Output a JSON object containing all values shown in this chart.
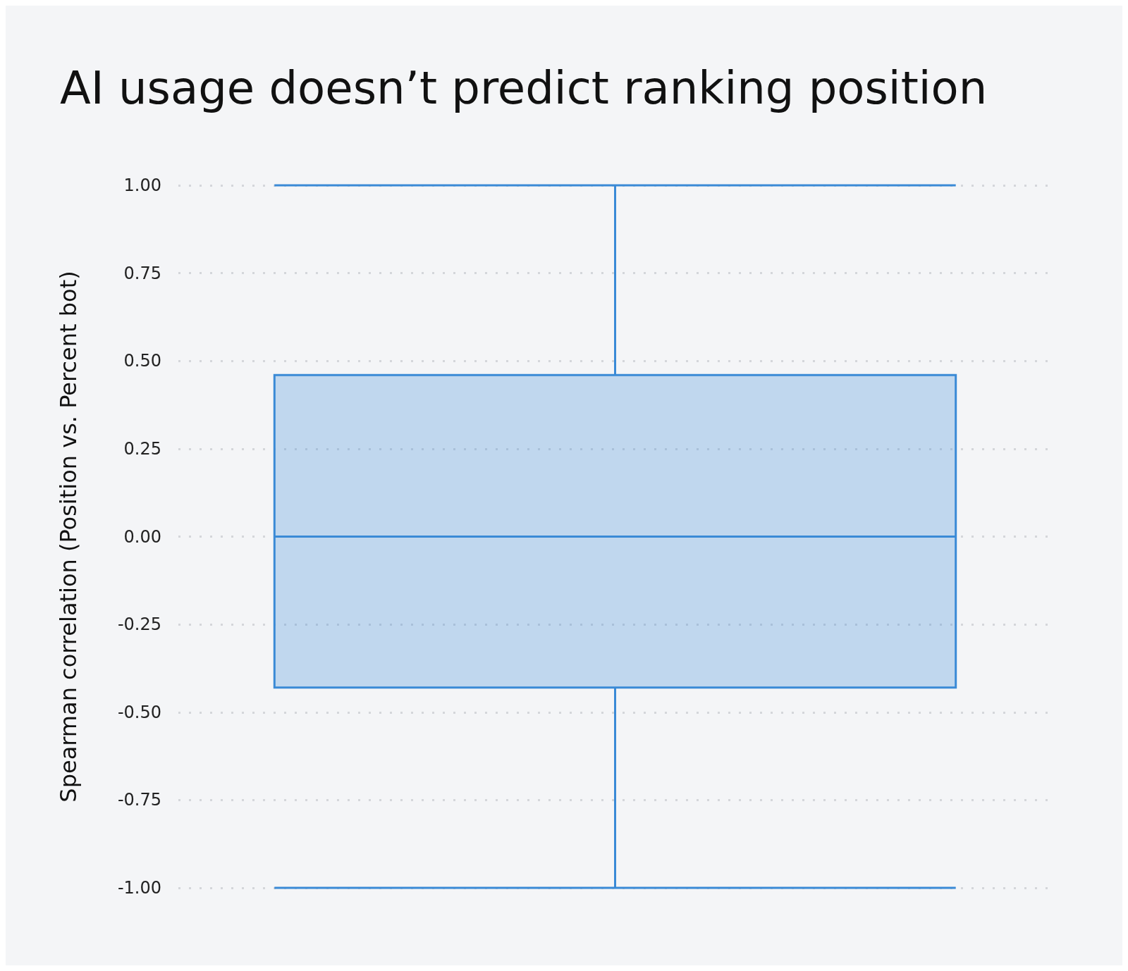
{
  "chart_data": {
    "type": "box",
    "title": "AI usage doesn’t predict ranking position",
    "ylabel": "Spearman correlation (Position vs. Percent bot)",
    "categories": [
      null
    ],
    "series": [
      {
        "color": "#3a8ad6",
        "boxes": [
          {
            "low": -1,
            "q1": -0.43,
            "median": 0,
            "q3": 0.46,
            "high": 1
          }
        ]
      }
    ],
    "ylim": [
      -1,
      1
    ],
    "yticks": [
      {
        "value": -1,
        "label": "-1.00"
      },
      {
        "value": -0.75,
        "label": "-0.75"
      },
      {
        "value": -0.5,
        "label": "-0.50"
      },
      {
        "value": -0.25,
        "label": "-0.25"
      },
      {
        "value": 0,
        "label": "0.00"
      },
      {
        "value": 0.25,
        "label": "0.25"
      },
      {
        "value": 0.5,
        "label": "0.50"
      },
      {
        "value": 0.75,
        "label": "0.75"
      },
      {
        "value": 1,
        "label": "1.00"
      }
    ],
    "grid": "y"
  }
}
